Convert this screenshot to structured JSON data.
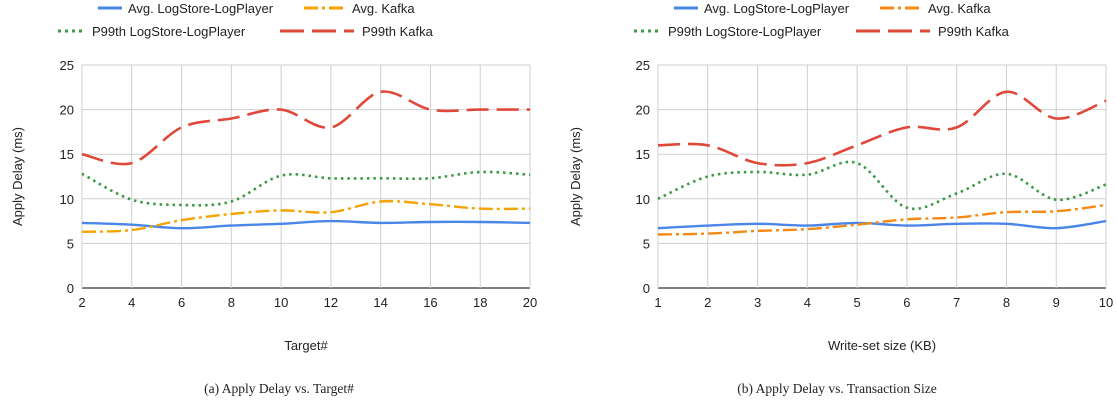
{
  "chart_data": [
    {
      "type": "line",
      "caption": "(a)  Apply Delay vs. Target#",
      "xlabel": "Target#",
      "ylabel": "Apply Delay (ms)",
      "x": [
        2,
        4,
        6,
        8,
        10,
        12,
        14,
        16,
        18,
        20
      ],
      "xticks": [
        "2",
        "4",
        "6",
        "8",
        "10",
        "12",
        "14",
        "16",
        "18",
        "20"
      ],
      "xlim": [
        2,
        20
      ],
      "ylim": [
        0,
        25
      ],
      "yticks": [
        "0",
        "5",
        "10",
        "15",
        "20",
        "25"
      ],
      "grid": true,
      "legend_position": "top",
      "series": [
        {
          "name": "Avg. LogStore-LogPlayer",
          "values": [
            7.3,
            7.1,
            6.7,
            7.0,
            7.2,
            7.5,
            7.3,
            7.4,
            7.4,
            7.3
          ],
          "color": "#4a86e8",
          "style": "solid"
        },
        {
          "name": "Avg. Kafka",
          "values": [
            6.3,
            6.5,
            7.6,
            8.3,
            8.7,
            8.5,
            9.7,
            9.4,
            8.9,
            8.9
          ],
          "color": "#f4a300",
          "style": "dashdot"
        },
        {
          "name": "P99th LogStore-LogPlayer",
          "values": [
            12.8,
            9.9,
            9.3,
            9.7,
            12.6,
            12.3,
            12.3,
            12.3,
            13.0,
            12.7
          ],
          "color": "#3a9a45",
          "style": "dotted"
        },
        {
          "name": "P99th Kafka",
          "values": [
            15.0,
            14.0,
            18.0,
            19.0,
            20.0,
            18.0,
            22.0,
            20.0,
            20.0,
            20.0
          ],
          "color": "#e0483a",
          "style": "longdash"
        }
      ]
    },
    {
      "type": "line",
      "caption": "(b)  Apply Delay vs. Transaction Size",
      "xlabel": "Write-set size (KB)",
      "ylabel": "Apply  Delay (ms)",
      "x": [
        1,
        2,
        3,
        4,
        5,
        6,
        7,
        8,
        9,
        10
      ],
      "xticks": [
        "1",
        "2",
        "3",
        "4",
        "5",
        "6",
        "7",
        "8",
        "9",
        "10"
      ],
      "xlim": [
        1,
        10
      ],
      "ylim": [
        0,
        25
      ],
      "yticks": [
        "0",
        "5",
        "10",
        "15",
        "20",
        "25"
      ],
      "grid": true,
      "legend_position": "top",
      "series": [
        {
          "name": "Avg. LogStore-LogPlayer",
          "values": [
            6.7,
            7.0,
            7.2,
            7.0,
            7.3,
            7.0,
            7.2,
            7.2,
            6.7,
            7.5
          ],
          "color": "#4a86e8",
          "style": "solid"
        },
        {
          "name": "Avg. Kafka",
          "values": [
            6.0,
            6.1,
            6.4,
            6.6,
            7.1,
            7.7,
            7.9,
            8.5,
            8.6,
            9.3
          ],
          "color": "#f48a14",
          "style": "dashdot"
        },
        {
          "name": "P99th LogStore-LogPlayer",
          "values": [
            10.0,
            12.5,
            13.0,
            12.7,
            14.0,
            9.0,
            10.6,
            12.8,
            9.9,
            11.6
          ],
          "color": "#3a9a45",
          "style": "dotted"
        },
        {
          "name": "P99th Kafka",
          "values": [
            16.0,
            16.0,
            14.0,
            14.0,
            16.0,
            18.0,
            18.0,
            22.0,
            19.0,
            21.0
          ],
          "color": "#e0483a",
          "style": "longdash"
        }
      ]
    }
  ]
}
